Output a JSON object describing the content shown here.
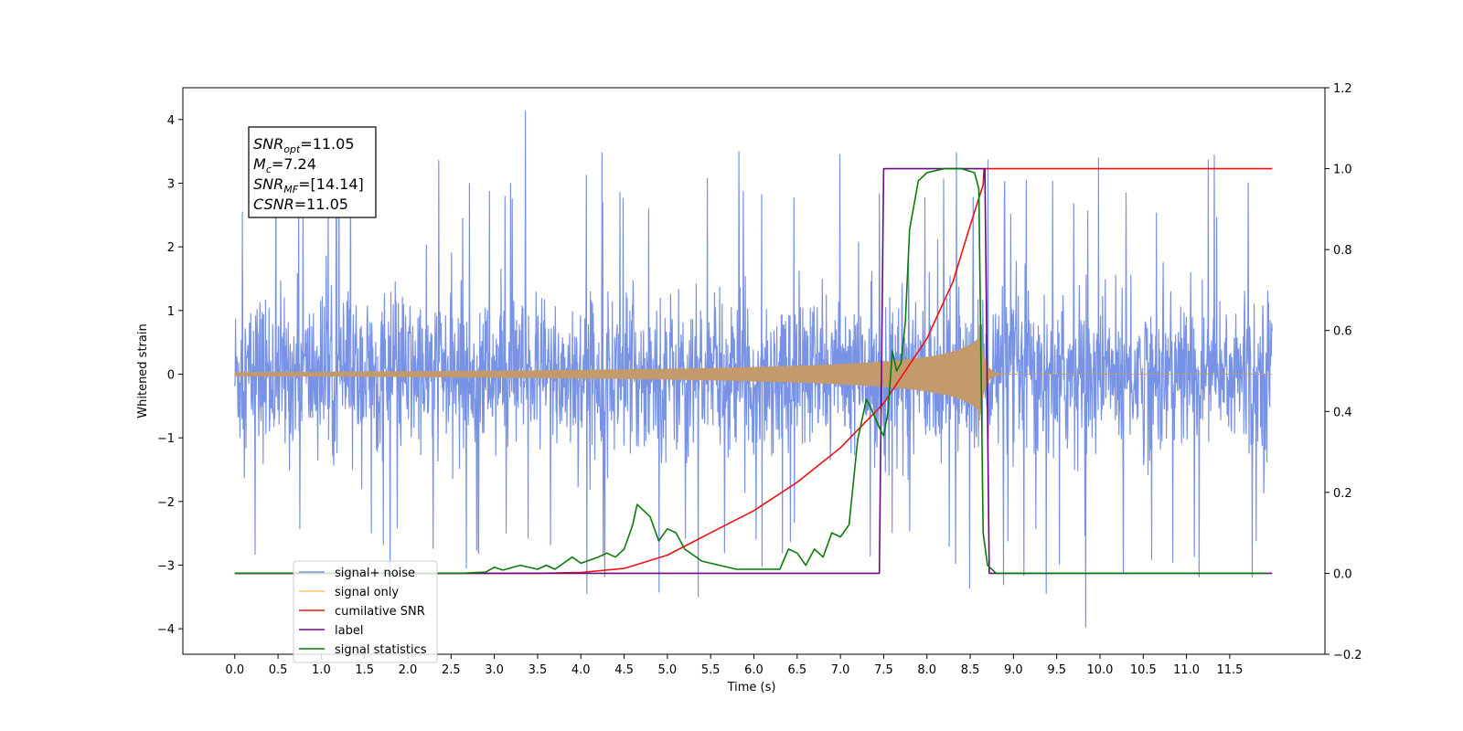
{
  "chart_data": {
    "type": "line",
    "title": "",
    "xlabel": "Time (s)",
    "ylabel": "Whitened strain",
    "xlim": [
      -0.6,
      12.6
    ],
    "ylim": [
      -4.4,
      4.5
    ],
    "y2lim": [
      -0.2,
      1.2
    ],
    "x_ticks": [
      "0.0",
      "0.5",
      "1.0",
      "1.5",
      "2.0",
      "2.5",
      "3.0",
      "3.5",
      "4.0",
      "4.5",
      "5.0",
      "5.5",
      "6.0",
      "6.5",
      "7.0",
      "7.5",
      "8.0",
      "8.5",
      "9.0",
      "9.5",
      "10.0",
      "10.5",
      "11.0",
      "11.5"
    ],
    "y_ticks": [
      "4",
      "3",
      "2",
      "1",
      "0",
      "−1",
      "−2",
      "−3",
      "−4"
    ],
    "y2_ticks": [
      "1.2",
      "1.0",
      "0.8",
      "0.6",
      "0.4",
      "0.2",
      "0.0",
      "−0.2"
    ],
    "grid": false,
    "legend_position": "bottom-left",
    "annotation": [
      {
        "name": "SNR",
        "sub": "opt",
        "value": "=11.05"
      },
      {
        "name": "M",
        "sub": "c",
        "value": "=7.24"
      },
      {
        "name": "SNR",
        "sub": "MF",
        "value": "=[14.14]"
      },
      {
        "name": "CSNR",
        "sub": "",
        "value": "=11.05"
      }
    ],
    "series": [
      {
        "name": "signal+ noise",
        "color": "#7893e6",
        "axis": "left",
        "kind": "noise",
        "x_range": [
          0.0,
          11.99
        ],
        "envelope_amplitude": 1.35,
        "max": 4.13,
        "min": -3.97
      },
      {
        "name": "signal only",
        "color": "#c49a6c",
        "axis": "left",
        "kind": "chirp",
        "x_range": [
          0.0,
          11.99
        ],
        "merger_time": 8.6,
        "peak_amplitude": 0.85
      },
      {
        "name": "cumilative SNR",
        "color": "#ee1111",
        "axis": "right",
        "x": [
          0.0,
          3.5,
          4.0,
          4.5,
          5.0,
          5.5,
          6.0,
          6.5,
          7.0,
          7.5,
          8.0,
          8.3,
          8.5,
          8.65,
          8.66,
          11.99
        ],
        "y": [
          0.0,
          0.0,
          0.002,
          0.012,
          0.045,
          0.1,
          0.155,
          0.225,
          0.31,
          0.42,
          0.58,
          0.72,
          0.86,
          0.96,
          1.0,
          1.0
        ]
      },
      {
        "name": "label",
        "color": "#6b0a80",
        "axis": "right",
        "x": [
          0.0,
          7.45,
          7.5,
          8.67,
          8.72,
          11.99
        ],
        "y": [
          0.0,
          0.0,
          1.0,
          1.0,
          0.0,
          0.0
        ]
      },
      {
        "name": "signal statistics",
        "color": "#0a7a0a",
        "axis": "right",
        "x": [
          0.0,
          2.6,
          2.9,
          3.0,
          3.1,
          3.3,
          3.5,
          3.6,
          3.7,
          3.9,
          4.0,
          4.2,
          4.3,
          4.4,
          4.5,
          4.6,
          4.65,
          4.7,
          4.8,
          4.9,
          5.0,
          5.1,
          5.2,
          5.4,
          5.6,
          5.8,
          6.0,
          6.3,
          6.4,
          6.5,
          6.6,
          6.7,
          6.8,
          6.9,
          7.0,
          7.1,
          7.2,
          7.3,
          7.35,
          7.45,
          7.5,
          7.55,
          7.6,
          7.65,
          7.7,
          7.75,
          7.8,
          7.9,
          8.0,
          8.2,
          8.4,
          8.55,
          8.6,
          8.65,
          8.7,
          8.8,
          11.93
        ],
        "y": [
          0.0,
          0.0,
          0.003,
          0.015,
          0.008,
          0.02,
          0.01,
          0.02,
          0.01,
          0.04,
          0.025,
          0.04,
          0.05,
          0.04,
          0.06,
          0.12,
          0.17,
          0.16,
          0.14,
          0.08,
          0.11,
          0.1,
          0.06,
          0.03,
          0.02,
          0.01,
          0.01,
          0.01,
          0.06,
          0.05,
          0.02,
          0.06,
          0.04,
          0.1,
          0.09,
          0.12,
          0.33,
          0.43,
          0.41,
          0.36,
          0.34,
          0.4,
          0.55,
          0.5,
          0.52,
          0.62,
          0.85,
          0.97,
          0.99,
          1.0,
          1.0,
          0.99,
          0.95,
          0.1,
          0.02,
          0.0,
          0.0
        ]
      }
    ],
    "legend": [
      {
        "label": "signal+ noise",
        "color": "#7893e6"
      },
      {
        "label": "signal only",
        "color": "#ffc266"
      },
      {
        "label": "cumilative SNR",
        "color": "#ee1111"
      },
      {
        "label": "label",
        "color": "#6b0a80"
      },
      {
        "label": "signal statistics",
        "color": "#0a7a0a"
      }
    ]
  }
}
